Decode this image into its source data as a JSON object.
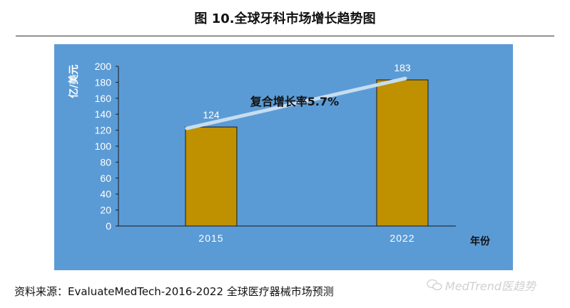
{
  "page_title": "图 10.全球牙科市场增长趋势图",
  "source_note": "资料来源：EvaluateMedTech-2016-2022 全球医疗器械市场预测",
  "watermark": {
    "text": "MedTrend医趋势",
    "icon": "chat-bubble-icon"
  },
  "colors": {
    "panel_background": "#5b9bd5",
    "bar_fill": "#bf9000",
    "bar_stroke": "#1a1a1a",
    "trend_line": "#c6ddf1",
    "axis_text": "#ffffff",
    "label_text": "#111111"
  },
  "chart_data": {
    "type": "bar",
    "title": "",
    "xlabel": "年份",
    "ylabel": "亿/美元",
    "categories": [
      "2015",
      "2022"
    ],
    "values": [
      124,
      183
    ],
    "ylim": [
      0,
      200
    ],
    "yticks": [
      0,
      20,
      40,
      60,
      80,
      100,
      120,
      140,
      160,
      180,
      200
    ],
    "data_labels": [
      "124",
      "183"
    ],
    "grid": false,
    "legend": "none",
    "annotation": {
      "text": "复合增长率5.7%",
      "type": "trend-arrow"
    }
  }
}
